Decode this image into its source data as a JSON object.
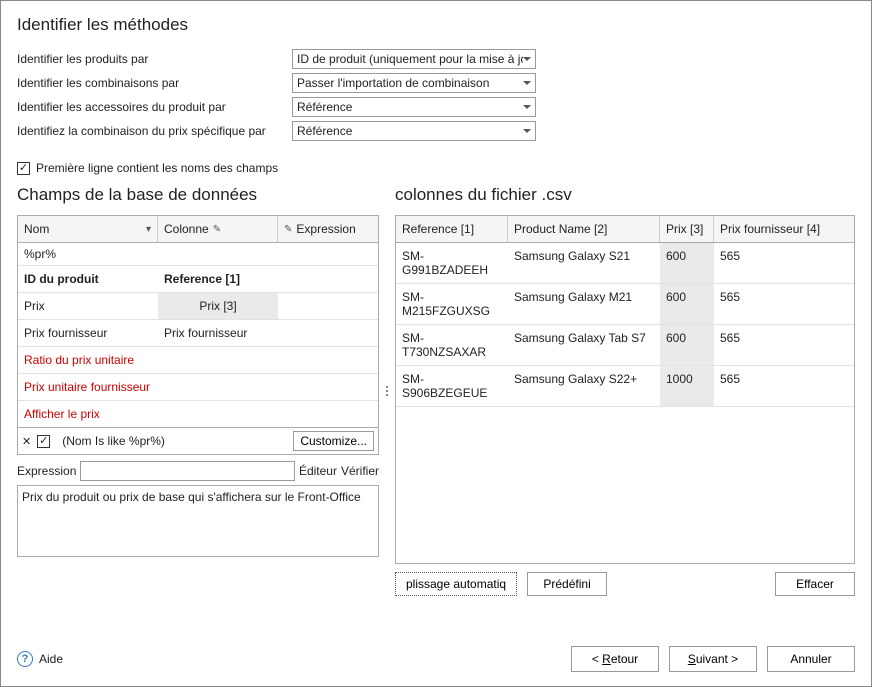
{
  "header": {
    "title": "Identifier les méthodes"
  },
  "form": {
    "rows": [
      {
        "label": "Identifier les produits par",
        "value": "ID de produit (uniquement pour la mise à jour)"
      },
      {
        "label": "Identifier les combinaisons par",
        "value": "Passer l'importation de combinaison"
      },
      {
        "label": "Identifier les accessoires du produit par",
        "value": "Référence"
      },
      {
        "label": "Identifiez la combinaison du prix spécifique par",
        "value": "Référence"
      }
    ]
  },
  "firstLineCheckbox": {
    "checked": true,
    "label": "Première ligne contient les noms des champs"
  },
  "leftPane": {
    "title": "Champs de la base de données",
    "headers": {
      "nom": "Nom",
      "colonne": "Colonne",
      "expression": "Expression"
    },
    "filterValue": "%pr%",
    "rows": [
      {
        "nom": "ID du produit",
        "col": "Reference [1]",
        "bold": true,
        "red": false
      },
      {
        "nom": "Prix",
        "col": "Prix [3]",
        "bold": false,
        "red": false,
        "selected": true
      },
      {
        "nom": "Prix fournisseur",
        "col": "Prix fournisseur",
        "bold": false,
        "red": false
      },
      {
        "nom": "Ratio du prix unitaire",
        "col": "",
        "bold": false,
        "red": true
      },
      {
        "nom": "Prix unitaire fournisseur",
        "col": "",
        "bold": false,
        "red": true
      },
      {
        "nom": "Afficher le prix",
        "col": "",
        "bold": false,
        "red": true
      }
    ],
    "filterBar": {
      "text": "(Nom Is like %pr%)",
      "customize": "Customize..."
    },
    "expression": {
      "label": "Expression",
      "value": "",
      "editor": "Éditeur",
      "verify": "Vérifier"
    },
    "description": "Prix du produit ou prix de base qui s'affichera sur le Front-Office"
  },
  "rightPane": {
    "title": "colonnes du fichier .csv",
    "headers": {
      "ref": "Reference [1]",
      "name": "Product Name [2]",
      "prix": "Prix [3]",
      "fourn": "Prix fournisseur [4]"
    },
    "rows": [
      {
        "ref": "SM-G991BZADEEH",
        "name": "Samsung Galaxy S21",
        "prix": "600",
        "fourn": "565"
      },
      {
        "ref": "SM-M215FZGUXSG",
        "name": "Samsung Galaxy M21",
        "prix": "600",
        "fourn": "565"
      },
      {
        "ref": "SM-T730NZSAXAR",
        "name": "Samsung Galaxy Tab S7",
        "prix": "600",
        "fourn": "565"
      },
      {
        "ref": "SM-S906BZEGEUE",
        "name": "Samsung Galaxy S22+",
        "prix": "1000",
        "fourn": "565"
      }
    ],
    "buttons": {
      "autofill": "plissage automatiq",
      "preset": "Prédéfini",
      "clear": "Effacer"
    }
  },
  "footer": {
    "help": "Aide",
    "back": "Retour",
    "next": "Suivant",
    "cancel": "Annuler"
  }
}
